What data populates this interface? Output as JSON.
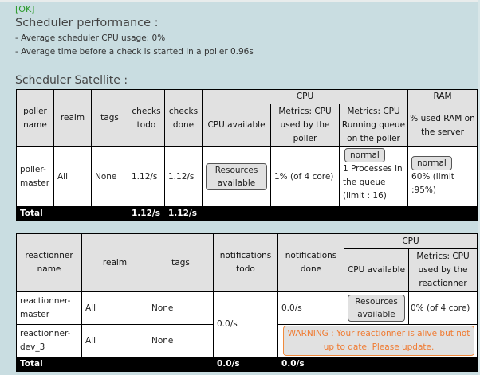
{
  "status": "[OK]",
  "perf": {
    "title": "Scheduler performance :",
    "cpu_line": "- Average scheduler CPU usage: 0%",
    "time_line": "- Average time before a check is started in a poller 0.96s"
  },
  "satellite_title": "Scheduler Satellite :",
  "pollers": {
    "headers": {
      "name": "poller name",
      "realm": "realm",
      "tags": "tags",
      "todo": "checks todo",
      "done": "checks done",
      "cpu_group": "CPU",
      "ram_group": "RAM",
      "cpu_available": "CPU available",
      "cpu_used": "Metrics: CPU used by the poller",
      "queue": "Metrics: CPU Running queue on the poller",
      "ram_used": "% used RAM on the server"
    },
    "rows": [
      {
        "name": "poller-master",
        "realm": "All",
        "tags": "None",
        "todo": "1.12/s",
        "done": "1.12/s",
        "cpu_available": "Resources available",
        "cpu_used": "1% (of 4 core)",
        "queue_badge": "normal",
        "queue": "1 Processes in the queue (limit : 16)",
        "ram_badge": "normal",
        "ram": "60% (limit :95%)"
      }
    ],
    "total": {
      "label": "Total",
      "todo": "1.12/s",
      "done": "1.12/s"
    }
  },
  "reactionners": {
    "headers": {
      "name": "reactionner name",
      "realm": "realm",
      "tags": "tags",
      "todo": "notifications todo",
      "done": "notifications done",
      "cpu_group": "CPU",
      "cpu_available": "CPU available",
      "cpu_used": "Metrics: CPU used by the reactionner"
    },
    "rows": [
      {
        "name": "reactionner-master",
        "realm": "All",
        "tags": "None",
        "done": "0.0/s",
        "cpu_available": "Resources available",
        "cpu_used": "0% (of 4 core)"
      },
      {
        "name": "reactionner-dev_3",
        "realm": "All",
        "tags": "None",
        "warning": "WARNING : Your reactionner is alive but not up to date. Please update."
      }
    ],
    "todo_shared": "0.0/s",
    "total": {
      "label": "Total",
      "todo": "0.0/s",
      "done": "0.0/s"
    }
  },
  "colors": {
    "background": "#c9dde1",
    "ok": "#2a9a2a",
    "warning": "#f07a30"
  }
}
